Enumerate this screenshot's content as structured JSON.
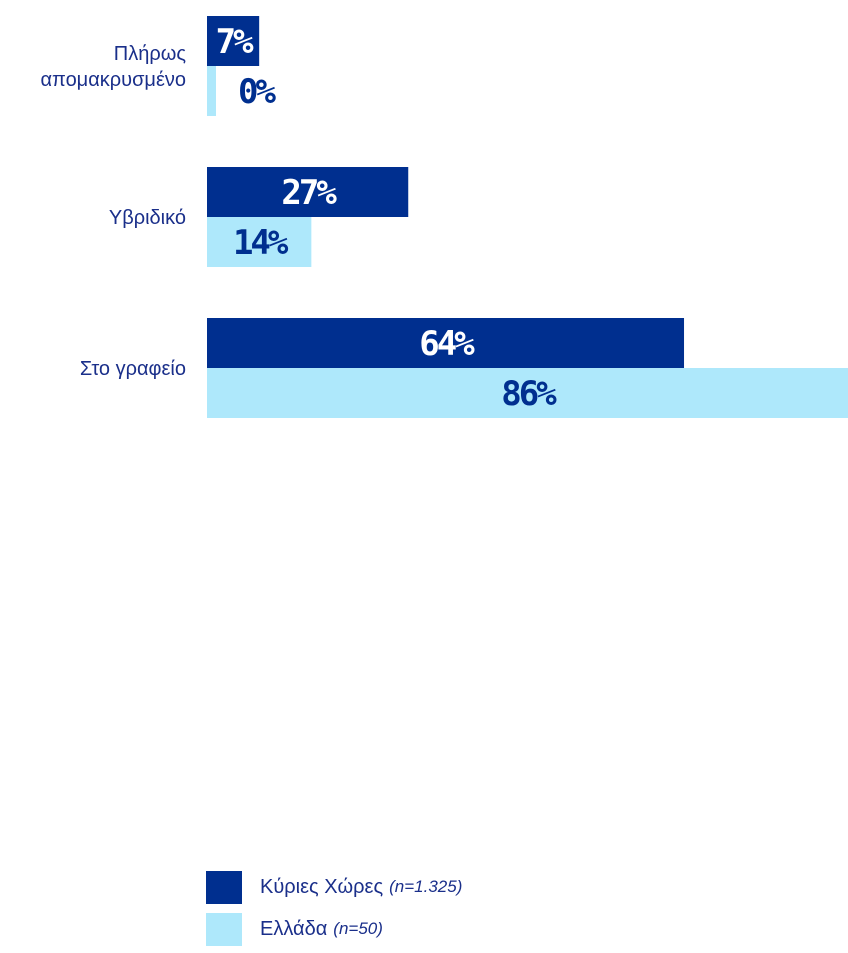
{
  "chart_data": {
    "type": "bar",
    "orientation": "horizontal",
    "categories": [
      "Πλήρως απομακρυσμένο",
      "Υβριδικό",
      "Στο γραφείο"
    ],
    "category_lines": [
      [
        "Πλήρως",
        "απομακρυσμένο"
      ],
      [
        "Υβριδικό"
      ],
      [
        "Στο γραφείο"
      ]
    ],
    "series": [
      {
        "name": "Κύριες Χώρες",
        "note": "(n=1.325)",
        "values": [
          7,
          27,
          64
        ],
        "labels": [
          "7%",
          "27%",
          "64%"
        ],
        "color": "#002f8f",
        "label_color": "#ffffff"
      },
      {
        "name": "Ελλάδα",
        "note": "(n=50)",
        "values": [
          0,
          14,
          86
        ],
        "labels": [
          "0%",
          "14%",
          "86%"
        ],
        "color": "#aee8fb",
        "label_color": "#002f8f"
      }
    ],
    "xlim": [
      0,
      86
    ],
    "legend_position": "bottom",
    "grid": false,
    "title": "",
    "xlabel": "",
    "ylabel": ""
  }
}
